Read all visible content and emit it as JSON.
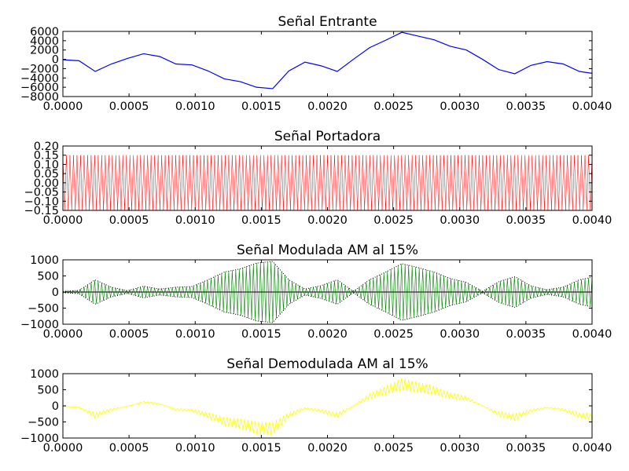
{
  "chart_data": [
    {
      "type": "line",
      "title": "Señal Entrante",
      "color": "#0000ff",
      "xlim": [
        0,
        0.004
      ],
      "ylim": [
        -8000,
        6000
      ],
      "x_ticks": [
        "0.0000",
        "0.0005",
        "0.0010",
        "0.0015",
        "0.0020",
        "0.0025",
        "0.0030",
        "0.0035",
        "0.0040"
      ],
      "y_ticks": [
        "−8000",
        "−6000",
        "−4000",
        "−2000",
        "0",
        "2000",
        "4000",
        "6000"
      ],
      "series": [
        {
          "x": [
            0,
            0.000122,
            0.000244,
            0.000366,
            0.000488,
            0.00061,
            0.000732,
            0.000854,
            0.000976,
            0.001098,
            0.00122,
            0.001342,
            0.001464,
            0.001586,
            0.001708,
            0.00183,
            0.001952,
            0.002074,
            0.002196,
            0.002318,
            0.00244,
            0.002562,
            0.002684,
            0.002806,
            0.002928,
            0.00305,
            0.003172,
            0.003294,
            0.003416,
            0.003538,
            0.00366,
            0.003782,
            0.003904,
            0.004
          ],
          "y": [
            -100,
            -300,
            -2600,
            -1000,
            200,
            1200,
            600,
            -1000,
            -1200,
            -2500,
            -4200,
            -4800,
            -6000,
            -6300,
            -2500,
            -600,
            -1400,
            -2600,
            0,
            2500,
            4100,
            5800,
            5000,
            4200,
            2800,
            2000,
            0,
            -2200,
            -3100,
            -1300,
            -500,
            -1000,
            -2600,
            -3000
          ]
        }
      ]
    },
    {
      "type": "line",
      "title": "Señal Portadora",
      "color": "#ff0000",
      "xlim": [
        0,
        0.004
      ],
      "ylim": [
        -0.15,
        0.2
      ],
      "x_ticks": [
        "0.0000",
        "0.0005",
        "0.0010",
        "0.0015",
        "0.0020",
        "0.0025",
        "0.0030",
        "0.0035",
        "0.0040"
      ],
      "y_ticks": [
        "−0.15",
        "−0.10",
        "−0.05",
        "0.00",
        "0.05",
        "0.10",
        "0.15",
        "0.20"
      ],
      "series": [
        {
          "amplitude": 0.15,
          "cycles": 150
        }
      ]
    },
    {
      "type": "line",
      "title": "Señal Modulada AM al 15%",
      "color": "#008000",
      "xlim": [
        0,
        0.004
      ],
      "ylim": [
        -1000,
        1000
      ],
      "x_ticks": [
        "0.0000",
        "0.0005",
        "0.0010",
        "0.0015",
        "0.0020",
        "0.0025",
        "0.0030",
        "0.0035",
        "0.0040"
      ],
      "y_ticks": [
        "−1000",
        "−500",
        "0",
        "500",
        "1000"
      ],
      "series": [
        {
          "envelope_x": [
            0,
            0.000122,
            0.000244,
            0.000366,
            0.000488,
            0.00061,
            0.000732,
            0.000854,
            0.000976,
            0.001098,
            0.00122,
            0.001342,
            0.001464,
            0.001586,
            0.001708,
            0.00183,
            0.001952,
            0.002074,
            0.002196,
            0.002318,
            0.00244,
            0.002562,
            0.002684,
            0.002806,
            0.002928,
            0.00305,
            0.003172,
            0.003294,
            0.003416,
            0.003538,
            0.00366,
            0.003782,
            0.003904,
            0.004
          ],
          "envelope_y": [
            20,
            50,
            380,
            150,
            40,
            180,
            90,
            150,
            170,
            380,
            620,
            720,
            900,
            950,
            380,
            90,
            200,
            380,
            20,
            380,
            620,
            880,
            760,
            620,
            420,
            300,
            20,
            320,
            480,
            190,
            70,
            150,
            380,
            460
          ],
          "cycles": 150
        }
      ]
    },
    {
      "type": "line",
      "title": "Señal Demodulada AM al 15%",
      "color": "#ffff00",
      "xlim": [
        0,
        0.004
      ],
      "ylim": [
        -1000,
        1000
      ],
      "x_ticks": [
        "0.0000",
        "0.0005",
        "0.0010",
        "0.0015",
        "0.0020",
        "0.0025",
        "0.0030",
        "0.0035",
        "0.0040"
      ],
      "y_ticks": [
        "−1000",
        "−500",
        "0",
        "500",
        "1000"
      ],
      "series": [
        {
          "envelope_x": [
            0,
            0.000122,
            0.000244,
            0.000366,
            0.000488,
            0.00061,
            0.000732,
            0.000854,
            0.000976,
            0.001098,
            0.00122,
            0.001342,
            0.001464,
            0.001586,
            0.001708,
            0.00183,
            0.001952,
            0.002074,
            0.002196,
            0.002318,
            0.00244,
            0.002562,
            0.002684,
            0.002806,
            0.002928,
            0.00305,
            0.003172,
            0.003294,
            0.003416,
            0.003538,
            0.00366,
            0.003782,
            0.003904,
            0.004
          ],
          "envelope_y": [
            -20,
            -60,
            -380,
            -150,
            -20,
            150,
            80,
            -150,
            -180,
            -380,
            -620,
            -720,
            -880,
            -920,
            -380,
            -90,
            -200,
            -380,
            0,
            380,
            620,
            860,
            740,
            620,
            410,
            300,
            0,
            -320,
            -460,
            -190,
            -70,
            -150,
            -380,
            -440
          ],
          "cycles": 150
        }
      ]
    }
  ]
}
